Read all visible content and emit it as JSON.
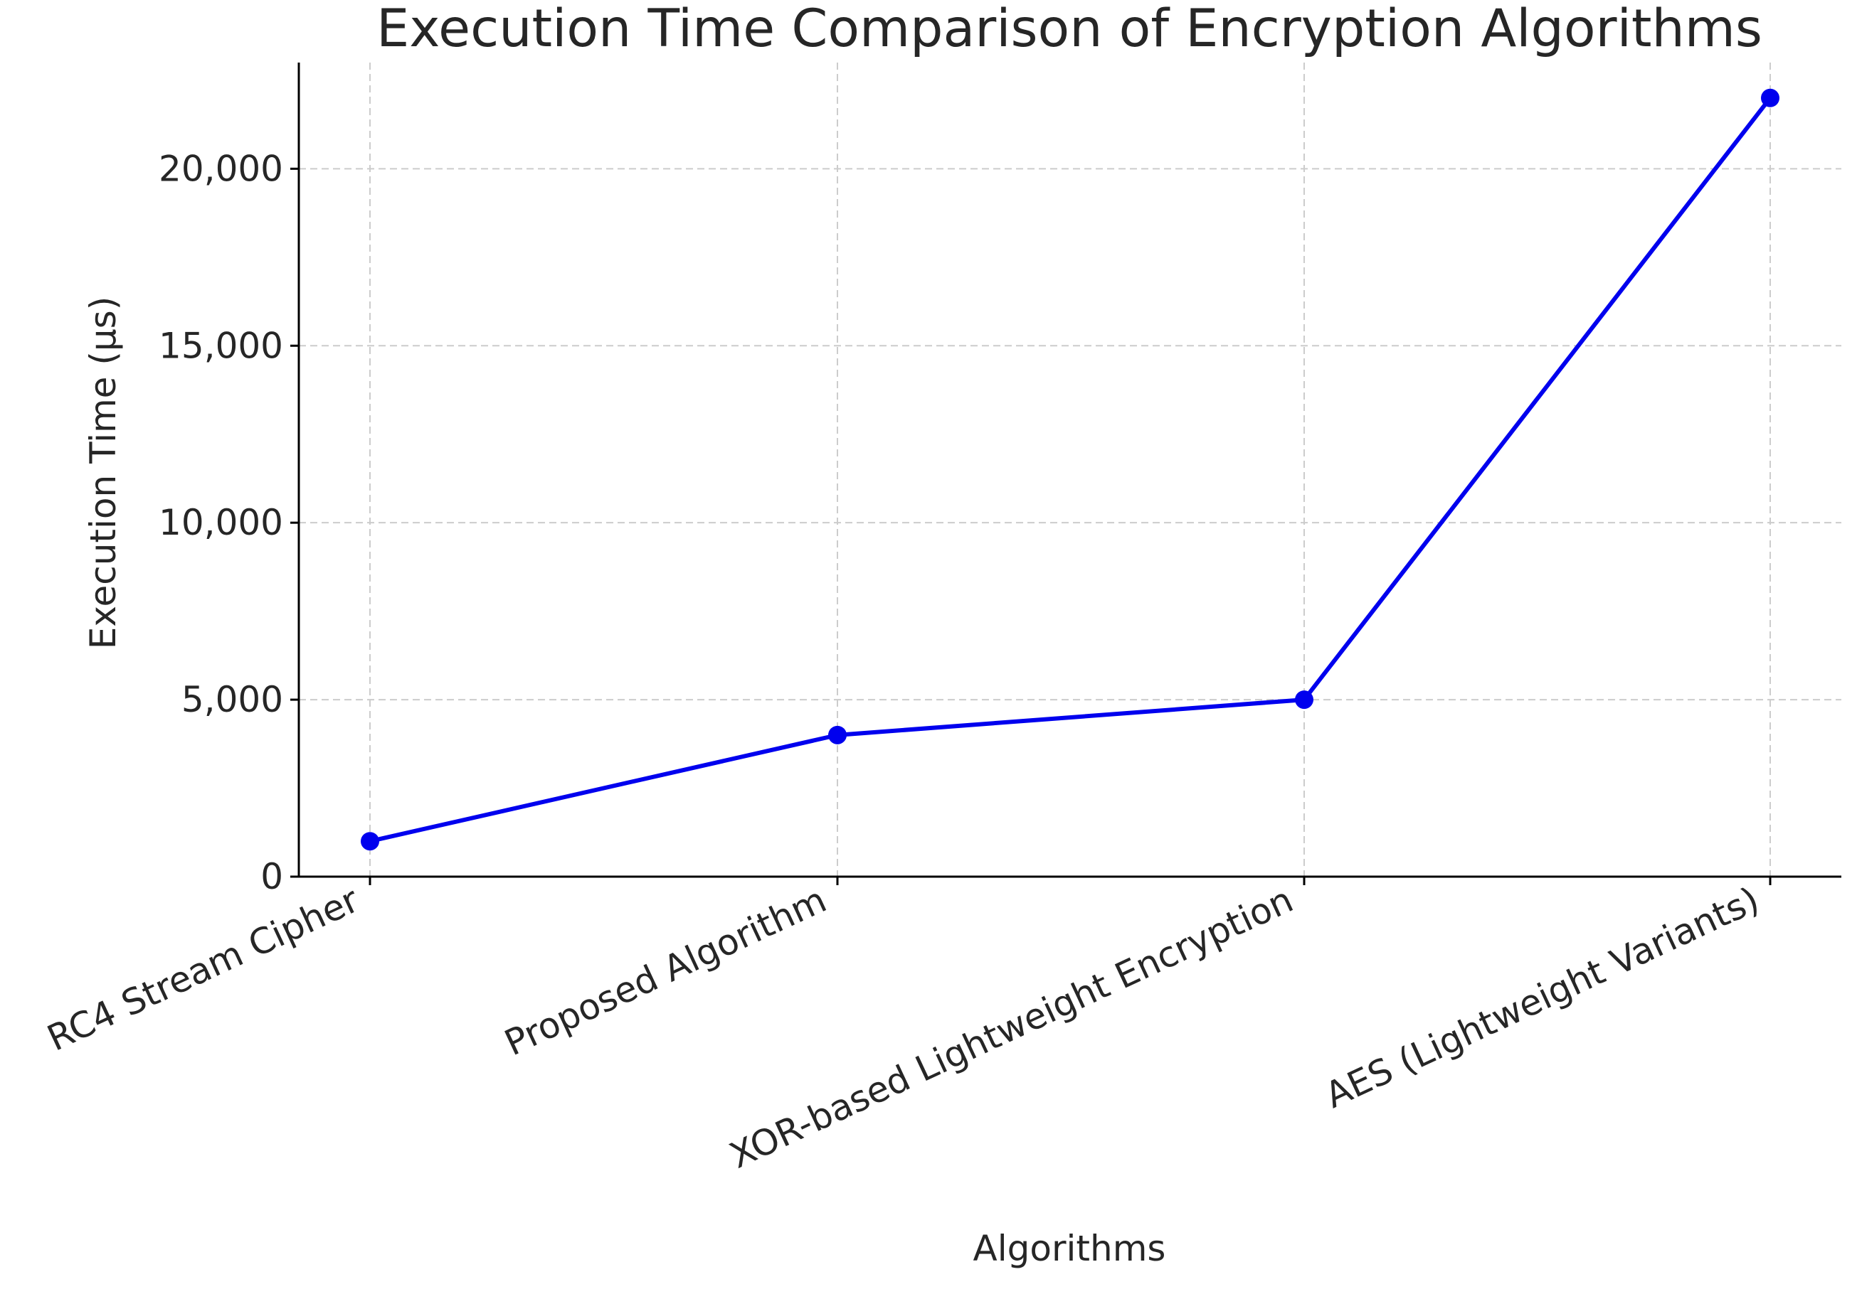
{
  "chart_data": {
    "type": "line",
    "title": "Execution Time Comparison of Encryption Algorithms",
    "xlabel": "Algorithms",
    "ylabel": "Execution Time (µs)",
    "categories": [
      "RC4 Stream Cipher",
      "Proposed Algorithm",
      "XOR-based Lightweight Encryption",
      "AES (Lightweight Variants)"
    ],
    "series": [
      {
        "values": [
          1000,
          4000,
          5000,
          22000
        ]
      }
    ],
    "ylim": [
      0,
      23000
    ],
    "yticks": [
      0,
      5000,
      10000,
      15000,
      20000
    ],
    "ytick_labels": [
      "0",
      "5,000",
      "10,000",
      "15,000",
      "20,000"
    ],
    "grid": true,
    "legend": "none",
    "colors": {
      "series": "#0000ee",
      "grid": "#cccccc",
      "text": "#262626"
    }
  }
}
